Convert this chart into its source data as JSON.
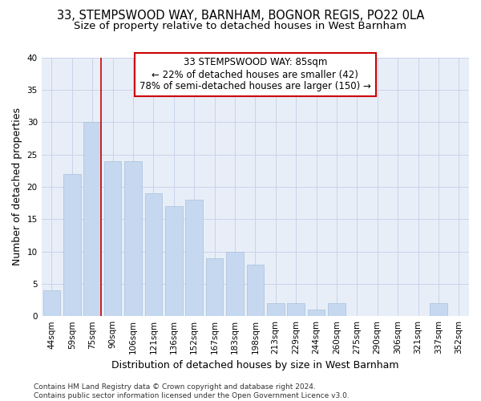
{
  "title": "33, STEMPSWOOD WAY, BARNHAM, BOGNOR REGIS, PO22 0LA",
  "subtitle": "Size of property relative to detached houses in West Barnham",
  "xlabel": "Distribution of detached houses by size in West Barnham",
  "ylabel": "Number of detached properties",
  "categories": [
    "44sqm",
    "59sqm",
    "75sqm",
    "90sqm",
    "106sqm",
    "121sqm",
    "136sqm",
    "152sqm",
    "167sqm",
    "183sqm",
    "198sqm",
    "213sqm",
    "229sqm",
    "244sqm",
    "260sqm",
    "275sqm",
    "290sqm",
    "306sqm",
    "321sqm",
    "337sqm",
    "352sqm"
  ],
  "values": [
    4,
    22,
    30,
    24,
    24,
    19,
    17,
    18,
    9,
    10,
    8,
    2,
    2,
    1,
    2,
    0,
    0,
    0,
    0,
    2,
    0
  ],
  "bar_color": "#c5d8f0",
  "bar_edgecolor": "#a8c0dc",
  "property_line_color": "#cc0000",
  "annotation_text": "33 STEMPSWOOD WAY: 85sqm\n← 22% of detached houses are smaller (42)\n78% of semi-detached houses are larger (150) →",
  "annotation_box_facecolor": "white",
  "annotation_box_edgecolor": "#cc0000",
  "ylim": [
    0,
    40
  ],
  "yticks": [
    0,
    5,
    10,
    15,
    20,
    25,
    30,
    35,
    40
  ],
  "grid_color": "#c8d4e8",
  "background_color": "#e8eef8",
  "footer": "Contains HM Land Registry data © Crown copyright and database right 2024.\nContains public sector information licensed under the Open Government Licence v3.0.",
  "title_fontsize": 10.5,
  "subtitle_fontsize": 9.5,
  "ylabel_fontsize": 9,
  "xlabel_fontsize": 9,
  "tick_fontsize": 7.5,
  "annotation_fontsize": 8.5,
  "footer_fontsize": 6.5
}
